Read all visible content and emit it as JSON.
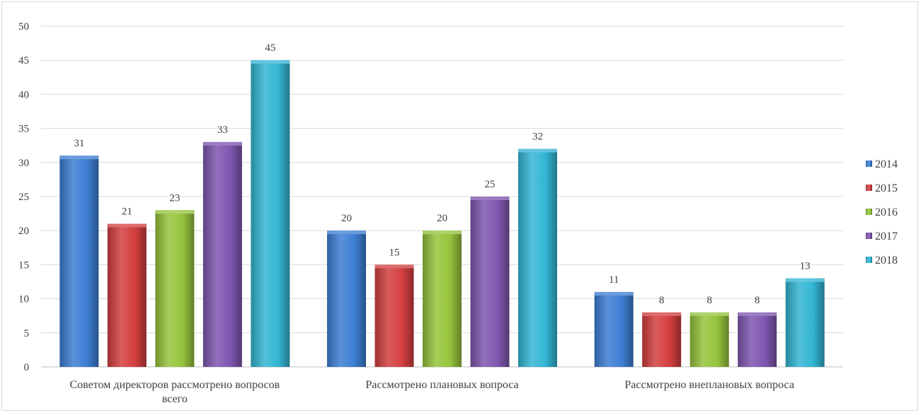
{
  "chart_data": {
    "type": "bar",
    "categories": [
      [
        "Советом директоров рассмотрено вопросов",
        "всего"
      ],
      [
        "Рассмотрено плановых вопроса"
      ],
      [
        "Рассмотрено внеплановых вопроса"
      ]
    ],
    "series": [
      {
        "name": "2014",
        "values": [
          31,
          20,
          11
        ],
        "color": "#3d7fd4"
      },
      {
        "name": "2015",
        "values": [
          21,
          15,
          8
        ],
        "color": "#d43f3f"
      },
      {
        "name": "2016",
        "values": [
          23,
          20,
          8
        ],
        "color": "#96c43c"
      },
      {
        "name": "2017",
        "values": [
          33,
          25,
          8
        ],
        "color": "#7f56b0"
      },
      {
        "name": "2018",
        "values": [
          45,
          32,
          13
        ],
        "color": "#33b6d4"
      }
    ],
    "ylim": [
      0,
      50
    ],
    "yticks": [
      0,
      5,
      10,
      15,
      20,
      25,
      30,
      35,
      40,
      45,
      50
    ],
    "grid": true,
    "legend_position": "right",
    "data_labels": true
  }
}
